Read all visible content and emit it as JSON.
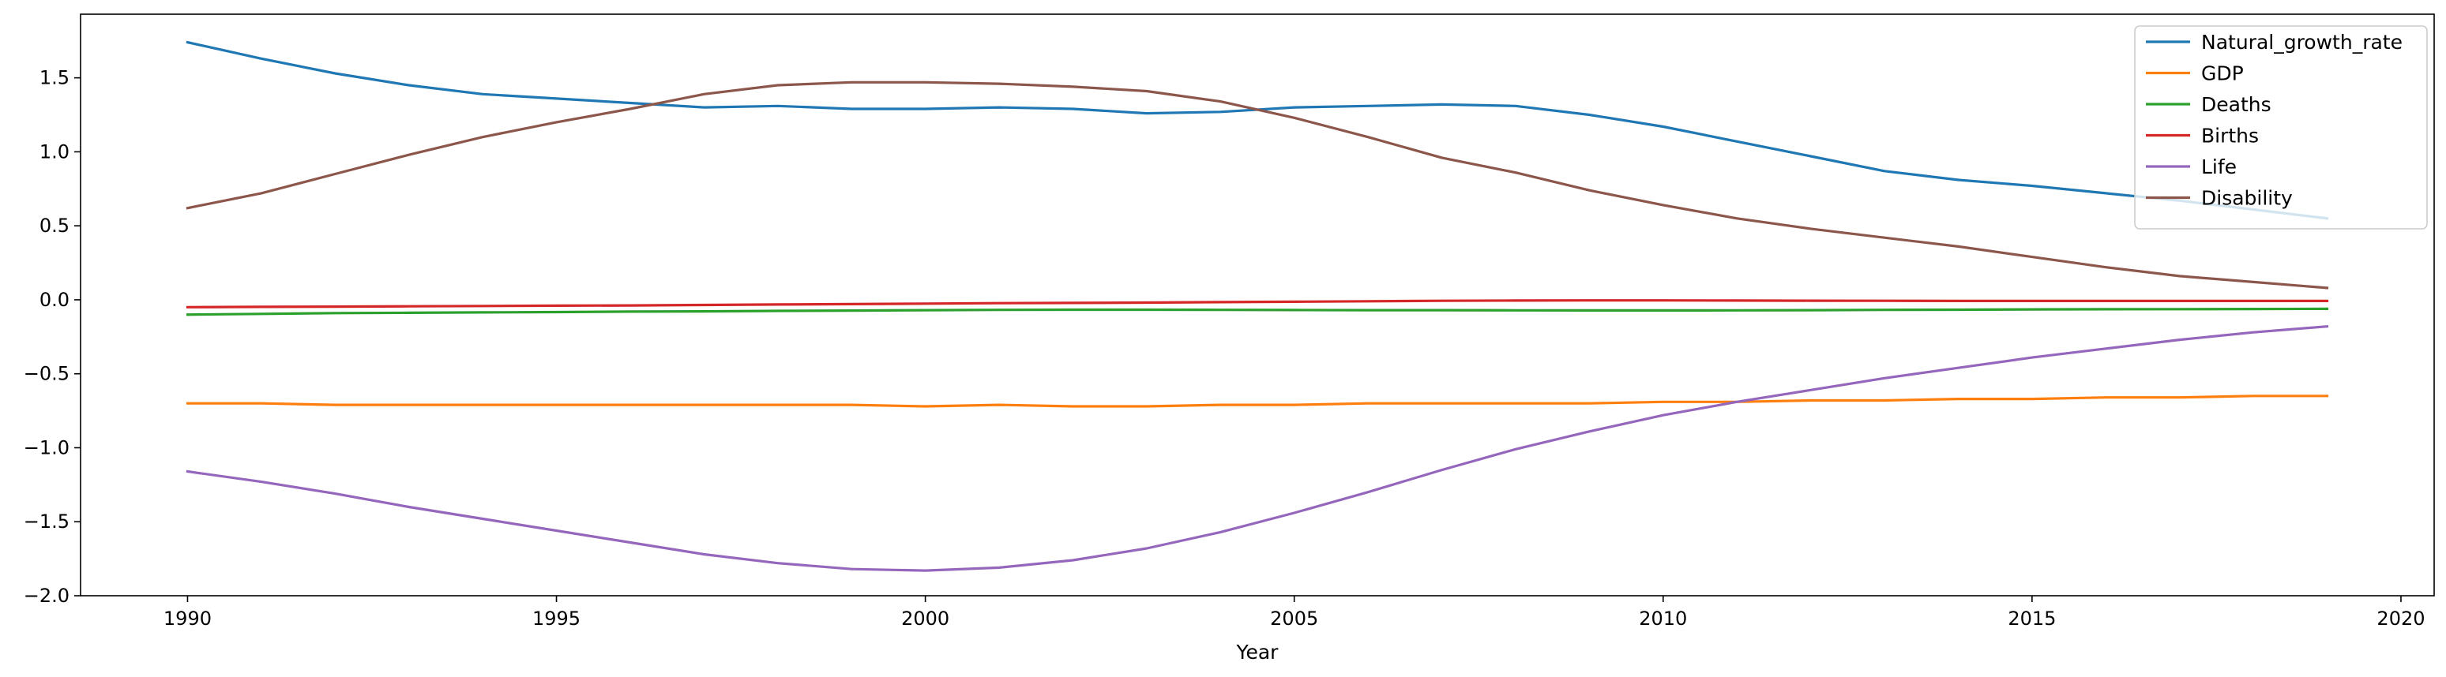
{
  "chart_data": {
    "type": "line",
    "title": "",
    "xlabel": "Year",
    "ylabel": "",
    "xlim": [
      1988.55,
      2020.45
    ],
    "ylim": [
      -2.0,
      1.93
    ],
    "x_ticks": [
      1990,
      1995,
      2000,
      2005,
      2010,
      2015,
      2020
    ],
    "x_tick_labels": [
      "1990",
      "1995",
      "2000",
      "2005",
      "2010",
      "2015",
      "2020"
    ],
    "y_ticks": [
      -2.0,
      -1.5,
      -1.0,
      -0.5,
      0.0,
      0.5,
      1.0,
      1.5
    ],
    "y_tick_labels": [
      "−2.0",
      "−1.5",
      "−1.0",
      "−0.5",
      "0.0",
      "0.5",
      "1.0",
      "1.5"
    ],
    "grid": false,
    "legend_position": "top-right",
    "x": [
      1990,
      1991,
      1992,
      1993,
      1994,
      1995,
      1996,
      1997,
      1998,
      1999,
      2000,
      2001,
      2002,
      2003,
      2004,
      2005,
      2006,
      2007,
      2008,
      2009,
      2010,
      2011,
      2012,
      2013,
      2014,
      2015,
      2016,
      2017,
      2018,
      2019
    ],
    "series": [
      {
        "name": "Natural_growth_rate",
        "color": "#1f77b4",
        "values": [
          1.74,
          1.63,
          1.53,
          1.45,
          1.39,
          1.36,
          1.33,
          1.3,
          1.31,
          1.29,
          1.29,
          1.3,
          1.29,
          1.26,
          1.27,
          1.3,
          1.31,
          1.32,
          1.31,
          1.25,
          1.17,
          1.07,
          0.97,
          0.87,
          0.81,
          0.77,
          0.72,
          0.67,
          0.61,
          0.55
        ]
      },
      {
        "name": "GDP",
        "color": "#ff7f0e",
        "values": [
          -0.7,
          -0.7,
          -0.71,
          -0.71,
          -0.71,
          -0.71,
          -0.71,
          -0.71,
          -0.71,
          -0.71,
          -0.72,
          -0.71,
          -0.72,
          -0.72,
          -0.71,
          -0.71,
          -0.7,
          -0.7,
          -0.7,
          -0.7,
          -0.69,
          -0.69,
          -0.68,
          -0.68,
          -0.67,
          -0.67,
          -0.66,
          -0.66,
          -0.65,
          -0.65
        ]
      },
      {
        "name": "Deaths",
        "color": "#2ca02c",
        "values": [
          -0.1,
          -0.095,
          -0.09,
          -0.088,
          -0.085,
          -0.083,
          -0.08,
          -0.078,
          -0.075,
          -0.073,
          -0.07,
          -0.068,
          -0.067,
          -0.067,
          -0.068,
          -0.069,
          -0.07,
          -0.07,
          -0.071,
          -0.072,
          -0.072,
          -0.071,
          -0.07,
          -0.068,
          -0.067,
          -0.065,
          -0.064,
          -0.063,
          -0.062,
          -0.061
        ]
      },
      {
        "name": "Births",
        "color": "#d62728",
        "values": [
          -0.05,
          -0.048,
          -0.046,
          -0.044,
          -0.042,
          -0.04,
          -0.038,
          -0.035,
          -0.032,
          -0.029,
          -0.026,
          -0.023,
          -0.021,
          -0.019,
          -0.016,
          -0.013,
          -0.01,
          -0.007,
          -0.005,
          -0.004,
          -0.004,
          -0.005,
          -0.006,
          -0.007,
          -0.008,
          -0.008,
          -0.008,
          -0.008,
          -0.008,
          -0.008
        ]
      },
      {
        "name": "Life",
        "color": "#9467bd",
        "values": [
          -1.16,
          -1.23,
          -1.31,
          -1.4,
          -1.48,
          -1.56,
          -1.64,
          -1.72,
          -1.78,
          -1.82,
          -1.83,
          -1.81,
          -1.76,
          -1.68,
          -1.57,
          -1.44,
          -1.3,
          -1.15,
          -1.01,
          -0.89,
          -0.78,
          -0.69,
          -0.61,
          -0.53,
          -0.46,
          -0.39,
          -0.33,
          -0.27,
          -0.22,
          -0.18
        ]
      },
      {
        "name": "Disability",
        "color": "#8c564b",
        "values": [
          0.62,
          0.72,
          0.85,
          0.98,
          1.1,
          1.2,
          1.29,
          1.39,
          1.45,
          1.47,
          1.47,
          1.46,
          1.44,
          1.41,
          1.34,
          1.23,
          1.1,
          0.96,
          0.86,
          0.74,
          0.64,
          0.55,
          0.48,
          0.42,
          0.36,
          0.29,
          0.22,
          0.16,
          0.12,
          0.08
        ]
      }
    ]
  }
}
